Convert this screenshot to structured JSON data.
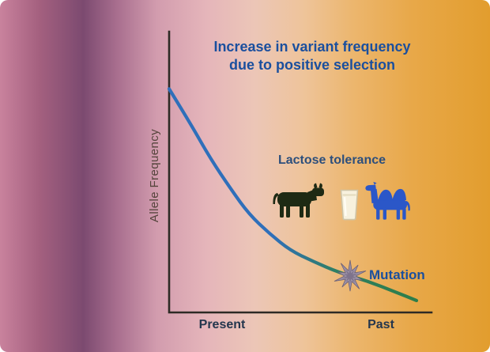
{
  "chart_data": {
    "type": "line",
    "title": "Increase in variant frequency due to positive selection",
    "title_lines": [
      "Increase in variant frequency",
      "due to positive selection"
    ],
    "ylabel": "Allele Frequency",
    "x_tick_labels": [
      "Present",
      "Past"
    ],
    "x_axis_note": "time runs from Present (left) to Past (right); no numeric ticks shown",
    "y_axis_note": "no numeric ticks shown; values below are normalized 0-1 estimates read from the curve",
    "grid": false,
    "legend": "none",
    "series": [
      {
        "name": "Lactose tolerance allele frequency",
        "stroke_gradient": [
          "#2f6fba",
          "#2e7d46"
        ],
        "x_normalized": [
          0,
          0.08,
          0.16,
          0.24,
          0.31,
          0.39,
          0.47,
          0.56,
          0.66,
          0.77,
          0.88,
          0.96
        ],
        "y_normalized": [
          0.8,
          0.68,
          0.55,
          0.44,
          0.35,
          0.28,
          0.22,
          0.18,
          0.14,
          0.11,
          0.07,
          0.04
        ]
      }
    ],
    "annotations": [
      {
        "text": "Lactose tolerance",
        "icons": [
          "cow-icon",
          "milk-glass-icon",
          "camel-icon"
        ]
      },
      {
        "text": "Mutation",
        "marker": "starburst-icon",
        "location": "on the curve near the Past end"
      }
    ]
  },
  "colors": {
    "title_text": "#1a4f9e",
    "mutation_text": "#1a4f9e",
    "lactose_text": "#2d4f7c",
    "tick_text": "#24364d",
    "ylabel_text": "#55443c",
    "axis": "#2d2a25",
    "curve_present_end": "#2f6fba",
    "curve_past_end": "#2e7d46",
    "cow_icon": "#1e2a14",
    "camel_icon": "#2b57c8",
    "milk_glass": "#f7f1de",
    "starburst": "#9b90a5",
    "background_left_pink": "#c9829d",
    "background_dark_band": "#7c4a70",
    "background_right_gold": "#e29d2e"
  }
}
